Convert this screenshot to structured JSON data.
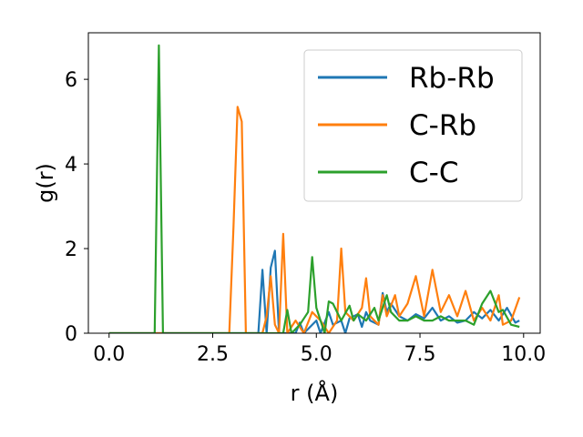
{
  "chart_data": {
    "type": "line",
    "title": "",
    "xlabel": "r (Å)",
    "ylabel": "g(r)",
    "xlim": [
      -0.5,
      10.4
    ],
    "ylim": [
      0,
      7.1
    ],
    "xticks": [
      0.0,
      2.5,
      5.0,
      7.5,
      10.0
    ],
    "xtick_labels": [
      "0.0",
      "2.5",
      "5.0",
      "7.5",
      "10.0"
    ],
    "yticks": [
      0,
      2,
      4,
      6
    ],
    "ytick_labels": [
      "0",
      "2",
      "4",
      "6"
    ],
    "grid": false,
    "legend_position": "top-right",
    "series": [
      {
        "name": "Rb-Rb",
        "color": "#1f77b4",
        "points": [
          [
            0,
            0
          ],
          [
            3.5,
            0
          ],
          [
            3.6,
            0
          ],
          [
            3.7,
            1.5
          ],
          [
            3.8,
            0
          ],
          [
            3.9,
            1.55
          ],
          [
            4.0,
            1.95
          ],
          [
            4.1,
            0
          ],
          [
            4.5,
            0
          ],
          [
            4.6,
            0.25
          ],
          [
            4.7,
            0
          ],
          [
            5.0,
            0.3
          ],
          [
            5.1,
            0
          ],
          [
            5.3,
            0.5
          ],
          [
            5.4,
            0.2
          ],
          [
            5.6,
            0.3
          ],
          [
            5.7,
            0
          ],
          [
            5.8,
            0.35
          ],
          [
            6.0,
            0.45
          ],
          [
            6.1,
            0.15
          ],
          [
            6.2,
            0.5
          ],
          [
            6.3,
            0.3
          ],
          [
            6.5,
            0.2
          ],
          [
            6.6,
            0.95
          ],
          [
            6.7,
            0.5
          ],
          [
            6.8,
            0.7
          ],
          [
            7.0,
            0.4
          ],
          [
            7.2,
            0.3
          ],
          [
            7.4,
            0.45
          ],
          [
            7.6,
            0.35
          ],
          [
            7.8,
            0.6
          ],
          [
            8.0,
            0.3
          ],
          [
            8.2,
            0.4
          ],
          [
            8.4,
            0.25
          ],
          [
            8.6,
            0.3
          ],
          [
            8.8,
            0.5
          ],
          [
            9.0,
            0.35
          ],
          [
            9.2,
            0.55
          ],
          [
            9.4,
            0.3
          ],
          [
            9.6,
            0.6
          ],
          [
            9.8,
            0.25
          ],
          [
            9.9,
            0.3
          ]
        ]
      },
      {
        "name": "C-Rb",
        "color": "#ff7f0e",
        "points": [
          [
            0,
            0
          ],
          [
            2.9,
            0
          ],
          [
            3.0,
            2.5
          ],
          [
            3.1,
            5.35
          ],
          [
            3.2,
            5.0
          ],
          [
            3.3,
            0
          ],
          [
            3.7,
            0
          ],
          [
            3.8,
            0.4
          ],
          [
            3.9,
            1.35
          ],
          [
            4.0,
            0.2
          ],
          [
            4.1,
            0
          ],
          [
            4.2,
            2.35
          ],
          [
            4.3,
            0
          ],
          [
            4.5,
            0.3
          ],
          [
            4.7,
            0
          ],
          [
            4.9,
            0.5
          ],
          [
            5.1,
            0.3
          ],
          [
            5.3,
            0
          ],
          [
            5.5,
            0.3
          ],
          [
            5.6,
            2.0
          ],
          [
            5.7,
            0.5
          ],
          [
            5.9,
            0.3
          ],
          [
            6.1,
            0.6
          ],
          [
            6.2,
            1.3
          ],
          [
            6.3,
            0.4
          ],
          [
            6.5,
            0.2
          ],
          [
            6.6,
            0.9
          ],
          [
            6.7,
            0.4
          ],
          [
            6.9,
            0.9
          ],
          [
            7.0,
            0.4
          ],
          [
            7.2,
            0.7
          ],
          [
            7.4,
            1.35
          ],
          [
            7.6,
            0.4
          ],
          [
            7.8,
            1.5
          ],
          [
            8.0,
            0.5
          ],
          [
            8.2,
            0.9
          ],
          [
            8.4,
            0.4
          ],
          [
            8.6,
            1.0
          ],
          [
            8.8,
            0.3
          ],
          [
            9.0,
            0.6
          ],
          [
            9.2,
            0.3
          ],
          [
            9.4,
            0.9
          ],
          [
            9.5,
            0.2
          ],
          [
            9.7,
            0.3
          ],
          [
            9.9,
            0.85
          ]
        ]
      },
      {
        "name": "C-C",
        "color": "#2ca02c",
        "points": [
          [
            0,
            0
          ],
          [
            1.1,
            0
          ],
          [
            1.2,
            6.8
          ],
          [
            1.3,
            0
          ],
          [
            4.2,
            0
          ],
          [
            4.3,
            0.55
          ],
          [
            4.4,
            0
          ],
          [
            4.6,
            0.2
          ],
          [
            4.8,
            0.5
          ],
          [
            4.9,
            1.8
          ],
          [
            5.0,
            0.6
          ],
          [
            5.2,
            0
          ],
          [
            5.3,
            0.75
          ],
          [
            5.4,
            0.7
          ],
          [
            5.6,
            0.3
          ],
          [
            5.8,
            0.65
          ],
          [
            5.9,
            0.3
          ],
          [
            6.0,
            0.45
          ],
          [
            6.2,
            0.3
          ],
          [
            6.4,
            0.6
          ],
          [
            6.5,
            0.3
          ],
          [
            6.7,
            0.9
          ],
          [
            6.8,
            0.5
          ],
          [
            7.0,
            0.3
          ],
          [
            7.2,
            0.3
          ],
          [
            7.4,
            0.4
          ],
          [
            7.6,
            0.3
          ],
          [
            7.8,
            0.3
          ],
          [
            8.0,
            0.4
          ],
          [
            8.2,
            0.3
          ],
          [
            8.4,
            0.3
          ],
          [
            8.6,
            0.3
          ],
          [
            8.8,
            0.2
          ],
          [
            9.0,
            0.7
          ],
          [
            9.2,
            1.0
          ],
          [
            9.4,
            0.5
          ],
          [
            9.5,
            0.55
          ],
          [
            9.7,
            0.2
          ],
          [
            9.9,
            0.15
          ]
        ]
      }
    ]
  }
}
